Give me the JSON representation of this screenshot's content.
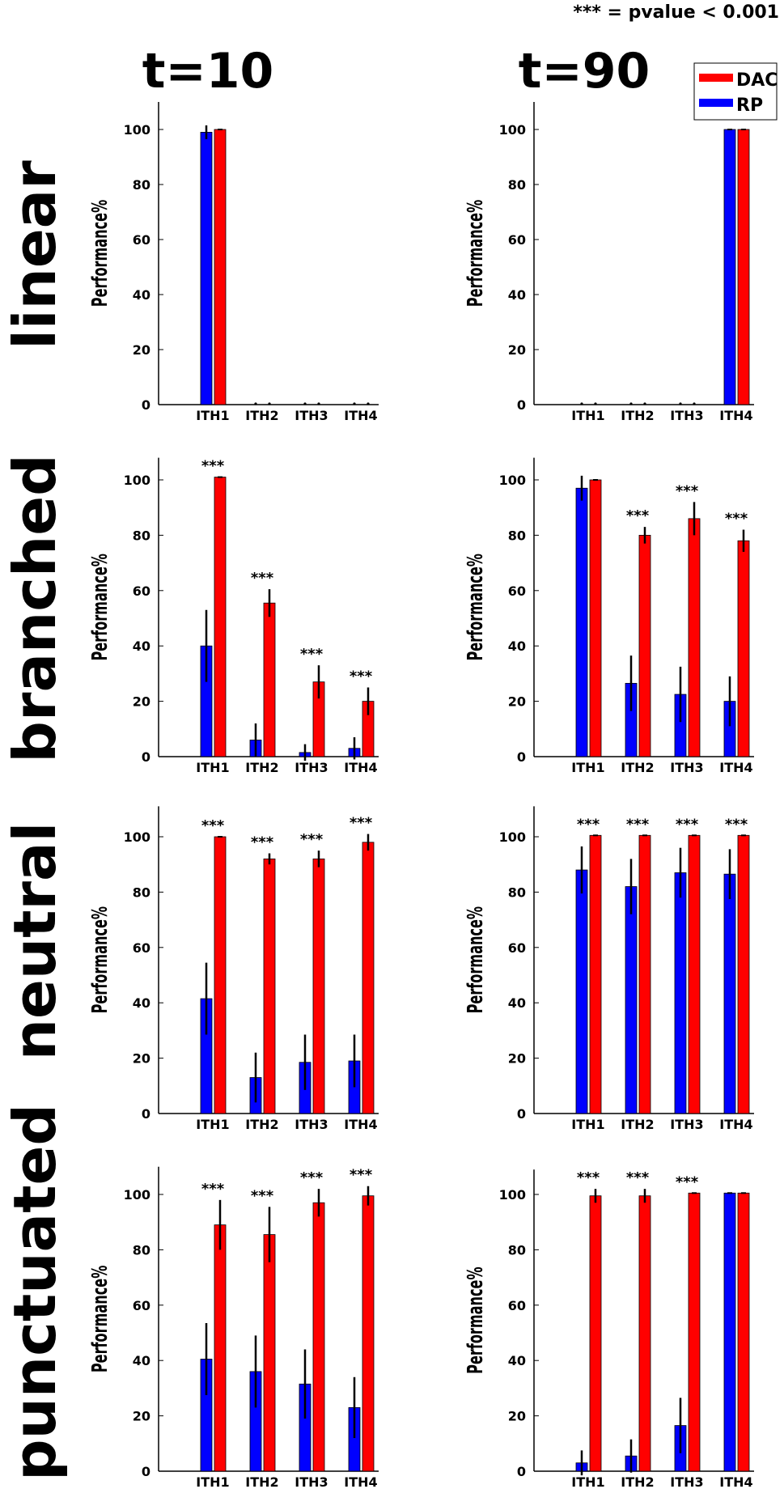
{
  "note": "*** = pvalue < 0.001",
  "col_titles": [
    "t=10",
    "t=90"
  ],
  "row_labels": [
    "linear",
    "branched",
    "neutral",
    "punctuated"
  ],
  "legend": [
    {
      "name": "DAC",
      "color": "#ff0000"
    },
    {
      "name": "RP",
      "color": "#0000ff"
    }
  ],
  "colors": {
    "RP": "#0000ff",
    "DAC": "#ff0000"
  },
  "chart_data": [
    {
      "type": "bar",
      "row": "linear",
      "col": "t=10",
      "categories": [
        "ITH1",
        "ITH2",
        "ITH3",
        "ITH4"
      ],
      "ylabel": "Performance%",
      "ylim": [
        0,
        110
      ],
      "yticks": [
        0,
        20,
        40,
        60,
        80,
        100
      ],
      "series": [
        {
          "name": "RP",
          "values": [
            99,
            0,
            0,
            0
          ],
          "errors": [
            2.5,
            0,
            0,
            0
          ]
        },
        {
          "name": "DAC",
          "values": [
            100,
            0,
            0,
            0
          ],
          "errors": [
            0,
            0,
            0,
            0
          ]
        }
      ],
      "significant": [
        false,
        false,
        false,
        false
      ],
      "star_label": "***"
    },
    {
      "type": "bar",
      "row": "linear",
      "col": "t=90",
      "categories": [
        "ITH1",
        "ITH2",
        "ITH3",
        "ITH4"
      ],
      "ylabel": "Performance%",
      "ylim": [
        0,
        110
      ],
      "yticks": [
        0,
        20,
        40,
        60,
        80,
        100
      ],
      "series": [
        {
          "name": "RP",
          "values": [
            0,
            0,
            0,
            100
          ],
          "errors": [
            0,
            0,
            0,
            0
          ]
        },
        {
          "name": "DAC",
          "values": [
            0,
            0,
            0,
            100
          ],
          "errors": [
            0,
            0,
            0,
            0
          ]
        }
      ],
      "significant": [
        false,
        false,
        false,
        false
      ],
      "star_label": "***"
    },
    {
      "type": "bar",
      "row": "branched",
      "col": "t=10",
      "categories": [
        "ITH1",
        "ITH2",
        "ITH3",
        "ITH4"
      ],
      "ylabel": "Performance%",
      "ylim": [
        0,
        108
      ],
      "yticks": [
        0,
        20,
        40,
        60,
        80,
        100
      ],
      "series": [
        {
          "name": "RP",
          "values": [
            40,
            6,
            1.5,
            3
          ],
          "errors": [
            13,
            6,
            3,
            4
          ]
        },
        {
          "name": "DAC",
          "values": [
            101,
            55.5,
            27,
            20
          ],
          "errors": [
            0,
            5,
            6,
            5
          ]
        }
      ],
      "significant": [
        true,
        true,
        true,
        true
      ],
      "star_label": "***"
    },
    {
      "type": "bar",
      "row": "branched",
      "col": "t=90",
      "categories": [
        "ITH1",
        "ITH2",
        "ITH3",
        "ITH4"
      ],
      "ylabel": "Performance%",
      "ylim": [
        0,
        108
      ],
      "yticks": [
        0,
        20,
        40,
        60,
        80,
        100
      ],
      "series": [
        {
          "name": "RP",
          "values": [
            97,
            26.5,
            22.5,
            20
          ],
          "errors": [
            4.5,
            10,
            10,
            9
          ]
        },
        {
          "name": "DAC",
          "values": [
            100,
            80,
            86,
            78
          ],
          "errors": [
            0,
            3,
            6,
            4
          ]
        }
      ],
      "significant": [
        false,
        true,
        true,
        true
      ],
      "star_label": "***"
    },
    {
      "type": "bar",
      "row": "neutral",
      "col": "t=10",
      "categories": [
        "ITH1",
        "ITH2",
        "ITH3",
        "ITH4"
      ],
      "ylabel": "Performance%",
      "ylim": [
        0,
        111
      ],
      "yticks": [
        0,
        20,
        40,
        60,
        80,
        100
      ],
      "series": [
        {
          "name": "RP",
          "values": [
            41.5,
            13,
            18.5,
            19
          ],
          "errors": [
            13,
            9,
            10,
            9.5
          ]
        },
        {
          "name": "DAC",
          "values": [
            100,
            92,
            92,
            98
          ],
          "errors": [
            0,
            2,
            3,
            3
          ]
        }
      ],
      "significant": [
        true,
        true,
        true,
        true
      ],
      "star_label": "***"
    },
    {
      "type": "bar",
      "row": "neutral",
      "col": "t=90",
      "categories": [
        "ITH1",
        "ITH2",
        "ITH3",
        "ITH4"
      ],
      "ylabel": "Performance%",
      "ylim": [
        0,
        111
      ],
      "yticks": [
        0,
        20,
        40,
        60,
        80,
        100
      ],
      "series": [
        {
          "name": "RP",
          "values": [
            88,
            82,
            87,
            86.5
          ],
          "errors": [
            8.5,
            10,
            9,
            9
          ]
        },
        {
          "name": "DAC",
          "values": [
            100.5,
            100.5,
            100.5,
            100.5
          ],
          "errors": [
            0,
            0,
            0,
            0
          ]
        }
      ],
      "significant": [
        true,
        true,
        true,
        true
      ],
      "star_label": "***"
    },
    {
      "type": "bar",
      "row": "punctuated",
      "col": "t=10",
      "categories": [
        "ITH1",
        "ITH2",
        "ITH3",
        "ITH4"
      ],
      "ylabel": "Performance%",
      "ylim": [
        0,
        110
      ],
      "yticks": [
        0,
        20,
        40,
        60,
        80,
        100
      ],
      "series": [
        {
          "name": "RP",
          "values": [
            40.5,
            36,
            31.5,
            23
          ],
          "errors": [
            13,
            13,
            12.5,
            11
          ]
        },
        {
          "name": "DAC",
          "values": [
            89,
            85.5,
            97,
            99.5
          ],
          "errors": [
            9,
            10,
            5,
            3.5
          ]
        }
      ],
      "significant": [
        true,
        true,
        true,
        true
      ],
      "star_label": "***"
    },
    {
      "type": "bar",
      "row": "punctuated",
      "col": "t=90",
      "categories": [
        "ITH1",
        "ITH2",
        "ITH3",
        "ITH4"
      ],
      "ylabel": "Performance%",
      "ylim": [
        0,
        109
      ],
      "yticks": [
        0,
        20,
        40,
        60,
        80,
        100
      ],
      "series": [
        {
          "name": "RP",
          "values": [
            3,
            5.5,
            16.5,
            100.5
          ],
          "errors": [
            4.5,
            6,
            10,
            0
          ]
        },
        {
          "name": "DAC",
          "values": [
            99.5,
            99.5,
            100.5,
            100.5
          ],
          "errors": [
            2.5,
            2.5,
            0,
            0
          ]
        }
      ],
      "significant": [
        true,
        true,
        true,
        false
      ],
      "star_label": "***"
    }
  ]
}
